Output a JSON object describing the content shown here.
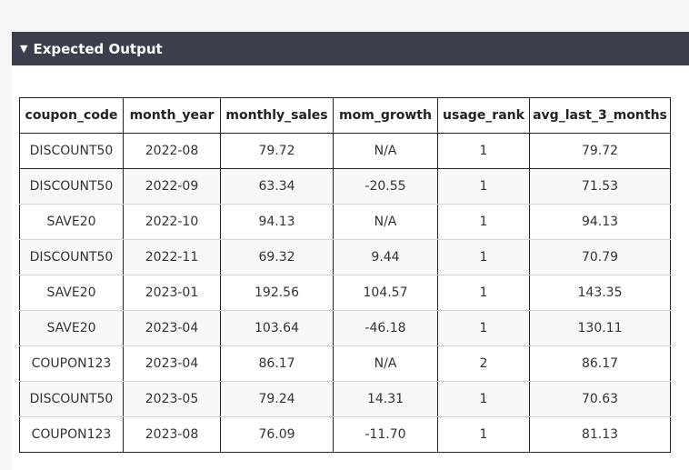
{
  "panel": {
    "title": "Expected Output",
    "caret": "▼"
  },
  "table": {
    "columns": [
      "coupon_code",
      "month_year",
      "monthly_sales",
      "mom_growth",
      "usage_rank",
      "avg_last_3_months"
    ],
    "rows": [
      [
        "DISCOUNT50",
        "2022-08",
        "79.72",
        "N/A",
        "1",
        "79.72"
      ],
      [
        "DISCOUNT50",
        "2022-09",
        "63.34",
        "-20.55",
        "1",
        "71.53"
      ],
      [
        "SAVE20",
        "2022-10",
        "94.13",
        "N/A",
        "1",
        "94.13"
      ],
      [
        "DISCOUNT50",
        "2022-11",
        "69.32",
        "9.44",
        "1",
        "70.79"
      ],
      [
        "SAVE20",
        "2023-01",
        "192.56",
        "104.57",
        "1",
        "143.35"
      ],
      [
        "SAVE20",
        "2023-04",
        "103.64",
        "-46.18",
        "1",
        "130.11"
      ],
      [
        "COUPON123",
        "2023-04",
        "86.17",
        "N/A",
        "2",
        "86.17"
      ],
      [
        "DISCOUNT50",
        "2023-05",
        "79.24",
        "14.31",
        "1",
        "70.63"
      ],
      [
        "COUPON123",
        "2023-08",
        "76.09",
        "-11.70",
        "1",
        "81.13"
      ]
    ]
  }
}
